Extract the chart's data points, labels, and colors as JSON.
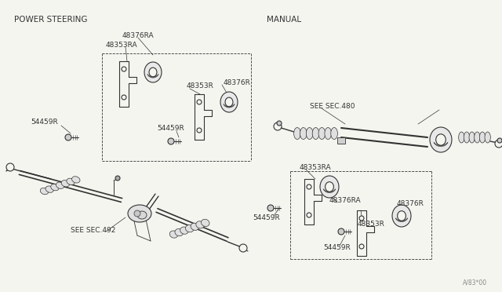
{
  "bg_color": "#f5f5f0",
  "left_section_title": "POWER STEERING",
  "right_section_title": "MANUAL",
  "footer_text": "A/83*00",
  "lc": "#333333",
  "font_size_labels": 6.5,
  "font_size_section": 7.5
}
